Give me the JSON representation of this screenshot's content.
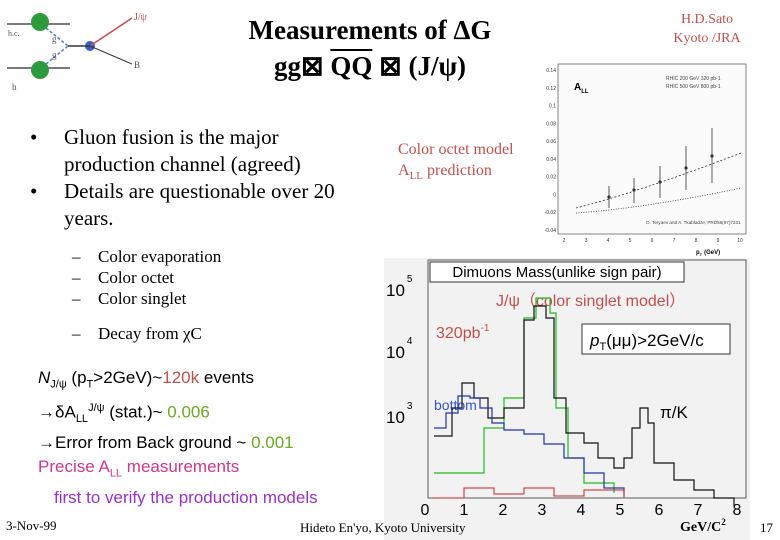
{
  "slide": {
    "title_line1": "Measurements of ΔG",
    "title_line2_pre": "gg",
    "title_line2_mid": "QQ",
    "title_line2_post": "(J/ψ)",
    "author_line1": "H.D.Sato",
    "author_line2": "Kyoto /JRA",
    "bullets": [
      "Gluon fusion is the major production channel (agreed)",
      "Details are questionable over 20 years."
    ],
    "sub_bullets": [
      "Color evaporation",
      "Color octet",
      "Color singlet",
      "Decay from χC"
    ],
    "stats": {
      "l1_a": "N",
      "l1_sub": "J/ψ",
      "l1_b": " (p",
      "l1_sub2": "T",
      "l1_c": ">2GeV)~",
      "l1_val": "120k",
      "l1_d": " events",
      "l2_a": "→δA",
      "l2_sub": "LL",
      "l2_sup": "J/ψ",
      "l2_b": " (stat.)~ ",
      "l2_val": "0.006",
      "l3_a": "→Error from Back ground ~ ",
      "l3_val": "0.001",
      "l4_a": "Precise A",
      "l4_sub": "LL",
      "l4_b": " measurements",
      "l5": "first to verify the production models"
    },
    "footer_date": "3-Nov-99",
    "footer_center": "Hideto En'yo, Kyoto University",
    "page_number": "17"
  },
  "diagram": {
    "labels": [
      "J/ψ",
      "g",
      "g",
      "B",
      "h.c.",
      "h"
    ]
  },
  "octet_chart": {
    "label_line1": "Color octet model",
    "label_line2a": "A",
    "label_line2sub": "LL",
    "label_line2b": " prediction",
    "ylabel": "A",
    "ylabel_sub": "LL",
    "xlabel": "p",
    "xlabel_sub": "T",
    "xlabel_unit": "(GeV)",
    "legend": [
      "RHIC 200 GeV 320 pb-1",
      "RHIC 500 GeV 800 pb-1"
    ],
    "citation": "O. Teryaev and A. Tkabladze, PRD56(97)7331",
    "yticks": [
      "0.14",
      "0.12",
      "0.1",
      "0.08",
      "0.06",
      "0.04",
      "0.02",
      "0",
      "-0.02",
      "-0.04"
    ],
    "xticks": [
      "2",
      "3",
      "4",
      "5",
      "6",
      "7",
      "8",
      "9",
      "10"
    ]
  },
  "dimuon_chart": {
    "title": "Dimuons Mass(unlike sign pair)",
    "annot_jpsi": "J/ψ（color singlet model）",
    "annot_lumi": "320pb",
    "annot_lumi_sup": "-1",
    "annot_pt": "p",
    "annot_pt_sub": "T",
    "annot_pt_b": "(μμ)>2GeV/c",
    "annot_bottom": "bottom",
    "annot_pik": "π/K",
    "ytick_labels": [
      {
        "base": "10",
        "exp": "5"
      },
      {
        "base": "10",
        "exp": "4"
      },
      {
        "base": "10",
        "exp": "3"
      }
    ],
    "xticks": [
      "0",
      "1",
      "2",
      "3",
      "4",
      "5",
      "6",
      "7",
      "8"
    ],
    "xunit": "GeV/C",
    "xunit_sup": "2"
  }
}
